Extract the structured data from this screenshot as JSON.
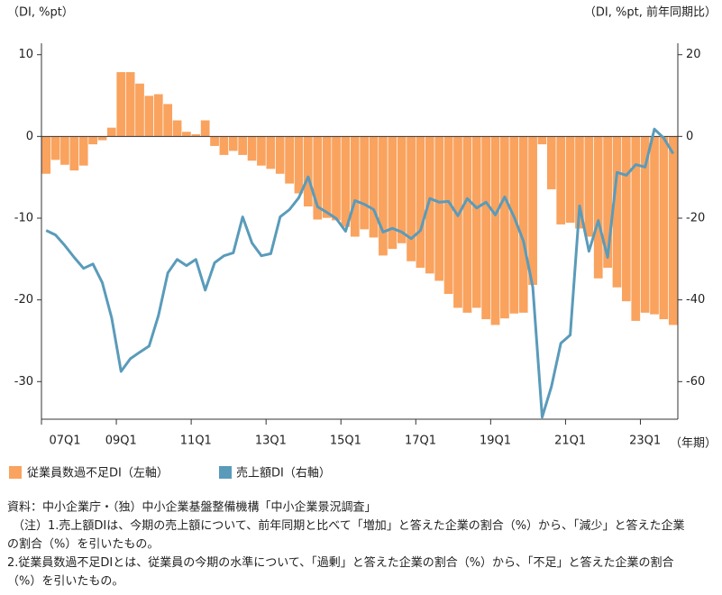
{
  "chart_data": {
    "type": "bar-line",
    "y_label": "（DI, %pt）",
    "y2_label": "（DI, %pt, 前年同期比）",
    "x_label": "（年期）",
    "categories": [
      "07Q1",
      null,
      null,
      null,
      null,
      null,
      null,
      null,
      "09Q1",
      null,
      null,
      null,
      null,
      null,
      null,
      null,
      "11Q1",
      null,
      null,
      null,
      null,
      null,
      null,
      null,
      "13Q1",
      null,
      null,
      null,
      null,
      null,
      null,
      null,
      "15Q1",
      null,
      null,
      null,
      null,
      null,
      null,
      null,
      "17Q1",
      null,
      null,
      null,
      null,
      null,
      null,
      null,
      "19Q1",
      null,
      null,
      null,
      null,
      null,
      null,
      null,
      "21Q1",
      null,
      null,
      null,
      null,
      null,
      null,
      null,
      "23Q1",
      null,
      null,
      null
    ],
    "series": [
      {
        "name": "従業員数過不足DI（左軸）",
        "color": "#f9a35f",
        "axis": "y",
        "values": [
          -4.6,
          -2.9,
          -3.5,
          -4.2,
          -3.6,
          -1.0,
          -0.5,
          1.1,
          7.9,
          7.9,
          6.5,
          5.0,
          5.2,
          4.0,
          2.0,
          0.6,
          0.3,
          2.0,
          -1.2,
          -2.3,
          -1.8,
          -2.3,
          -3.0,
          -3.6,
          -4.0,
          -4.6,
          -5.8,
          -7.0,
          -8.6,
          -10.2,
          -10.0,
          -10.3,
          -11.1,
          -12.3,
          -11.4,
          -12.4,
          -14.6,
          -13.8,
          -13.1,
          -15.3,
          -16.1,
          -16.8,
          -17.7,
          -19.3,
          -21.0,
          -21.6,
          -21.0,
          -22.4,
          -23.1,
          -22.3,
          -21.7,
          -21.6,
          -18.2,
          -1.0,
          -6.5,
          -10.8,
          -10.6,
          -11.3,
          -12.3,
          -17.4,
          -16.1,
          -18.5,
          -20.2,
          -22.6,
          -21.6,
          -21.8,
          -22.4,
          -23.1
        ]
      },
      {
        "name": "売上額DI（右軸）",
        "color": "#5a9bba",
        "axis": "y2",
        "values": [
          -23.0,
          -24.1,
          -26.7,
          -29.6,
          -32.3,
          -31.2,
          -35.8,
          -44.4,
          -57.5,
          -54.4,
          -52.8,
          -51.3,
          -43.8,
          -33.4,
          -30.1,
          -31.6,
          -30.1,
          -37.6,
          -30.9,
          -29.2,
          -28.5,
          -19.7,
          -26.1,
          -29.2,
          -28.7,
          -19.7,
          -17.9,
          -15.0,
          -9.9,
          -17.2,
          -18.6,
          -20.1,
          -23.2,
          -15.7,
          -16.6,
          -17.9,
          -23.4,
          -22.5,
          -23.4,
          -25.0,
          -23.0,
          -15.2,
          -16.1,
          -15.9,
          -19.4,
          -15.2,
          -17.5,
          -16.1,
          -19.2,
          -14.8,
          -19.7,
          -25.6,
          -36.9,
          -68.7,
          -61.2,
          -50.6,
          -48.6,
          -17.0,
          -28.1,
          -20.6,
          -29.6,
          -8.8,
          -9.5,
          -6.9,
          -7.5,
          1.8,
          -0.4,
          -4.2
        ]
      }
    ],
    "ylim": [
      -34.6,
      11.4
    ],
    "yticks": [
      -30,
      -20,
      -10,
      0,
      10
    ],
    "y2lim": [
      -69.2,
      22.8
    ],
    "y2ticks": [
      -60,
      -40,
      -20,
      0,
      20
    ],
    "notes": [
      "資料：中小企業庁・（独）中小企業基盤整備機構「中小企業景況調査」",
      "（注）1.売上額DIは、今期の売上額について、前年同期と比べて「増加」と答えた企業の割合（%）から、「減少」と答えた企業",
      "の割合（%）を引いたもの。",
      "2.従業員数過不足DIとは、従業員の今期の水準について、「過剰」と答えた企業の割合（%）から、「不足」と答えた企業の割合",
      "（%）を引いたもの。"
    ]
  }
}
